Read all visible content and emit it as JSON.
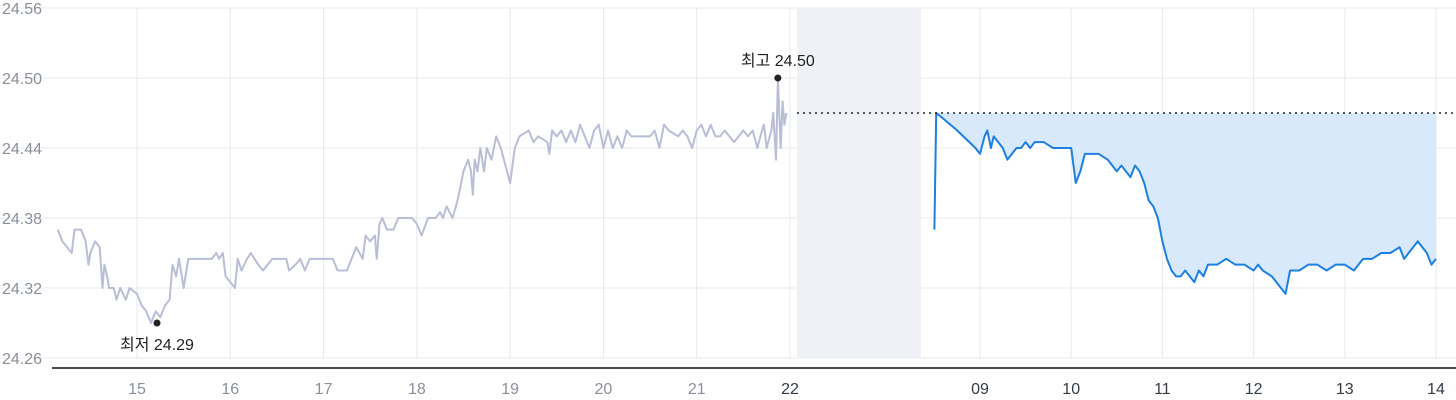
{
  "chart_data": {
    "type": "line",
    "y_axis": {
      "ylim": [
        24.26,
        24.56
      ],
      "ticks": [
        "24.56",
        "24.50",
        "24.44",
        "24.38",
        "24.32",
        "24.26"
      ]
    },
    "x_axis": {
      "history_ticks": [
        "15",
        "16",
        "17",
        "18",
        "19",
        "20",
        "21",
        "22"
      ],
      "intraday_ticks": [
        "09",
        "10",
        "11",
        "12",
        "13",
        "14"
      ]
    },
    "annotations": {
      "high_label": "최고 24.50",
      "high_value": 24.5,
      "low_label": "최저 24.29",
      "low_value": 24.29
    },
    "reference_line": 24.47,
    "colors": {
      "history_line": "#b9bdd6",
      "intraday_line": "#1e7fe0",
      "intraday_fill": "#d8e9fb",
      "gap_band": "#eff1f6",
      "grid": "#e6e8ec",
      "axis": "#111111"
    },
    "series": [
      {
        "segment": "history",
        "points": [
          [
            14.15,
            24.37
          ],
          [
            14.2,
            24.36
          ],
          [
            14.25,
            24.355
          ],
          [
            14.3,
            24.35
          ],
          [
            14.33,
            24.37
          ],
          [
            14.4,
            24.37
          ],
          [
            14.45,
            24.36
          ],
          [
            14.48,
            24.34
          ],
          [
            14.5,
            24.35
          ],
          [
            14.55,
            24.36
          ],
          [
            14.6,
            24.355
          ],
          [
            14.63,
            24.32
          ],
          [
            14.65,
            24.34
          ],
          [
            14.68,
            24.33
          ],
          [
            14.7,
            24.32
          ],
          [
            14.75,
            24.32
          ],
          [
            14.78,
            24.31
          ],
          [
            14.82,
            24.32
          ],
          [
            14.88,
            24.31
          ],
          [
            14.92,
            24.32
          ],
          [
            15.0,
            24.315
          ],
          [
            15.05,
            24.305
          ],
          [
            15.1,
            24.3
          ],
          [
            15.15,
            24.29
          ],
          [
            15.2,
            24.3
          ],
          [
            15.25,
            24.295
          ],
          [
            15.3,
            24.305
          ],
          [
            15.35,
            24.31
          ],
          [
            15.38,
            24.34
          ],
          [
            15.42,
            24.33
          ],
          [
            15.45,
            24.345
          ],
          [
            15.5,
            24.32
          ],
          [
            15.55,
            24.345
          ],
          [
            15.6,
            24.345
          ],
          [
            15.7,
            24.345
          ],
          [
            15.8,
            24.345
          ],
          [
            15.85,
            24.35
          ],
          [
            15.88,
            24.345
          ],
          [
            15.92,
            24.35
          ],
          [
            15.95,
            24.33
          ],
          [
            16.0,
            24.325
          ],
          [
            16.05,
            24.32
          ],
          [
            16.08,
            24.345
          ],
          [
            16.12,
            24.335
          ],
          [
            16.18,
            24.345
          ],
          [
            16.22,
            24.35
          ],
          [
            16.3,
            24.34
          ],
          [
            16.35,
            24.335
          ],
          [
            16.45,
            24.345
          ],
          [
            16.6,
            24.345
          ],
          [
            16.63,
            24.335
          ],
          [
            16.7,
            24.34
          ],
          [
            16.75,
            24.345
          ],
          [
            16.8,
            24.335
          ],
          [
            16.85,
            24.345
          ],
          [
            17.0,
            24.345
          ],
          [
            17.1,
            24.345
          ],
          [
            17.15,
            24.335
          ],
          [
            17.25,
            24.335
          ],
          [
            17.35,
            24.355
          ],
          [
            17.42,
            24.345
          ],
          [
            17.45,
            24.365
          ],
          [
            17.5,
            24.36
          ],
          [
            17.55,
            24.365
          ],
          [
            17.57,
            24.345
          ],
          [
            17.6,
            24.375
          ],
          [
            17.63,
            24.38
          ],
          [
            17.68,
            24.37
          ],
          [
            17.75,
            24.37
          ],
          [
            17.8,
            24.38
          ],
          [
            17.9,
            24.38
          ],
          [
            17.95,
            24.38
          ],
          [
            18.0,
            24.375
          ],
          [
            18.05,
            24.365
          ],
          [
            18.12,
            24.38
          ],
          [
            18.2,
            24.38
          ],
          [
            18.25,
            24.385
          ],
          [
            18.28,
            24.38
          ],
          [
            18.32,
            24.39
          ],
          [
            18.38,
            24.38
          ],
          [
            18.42,
            24.39
          ],
          [
            18.45,
            24.4
          ],
          [
            18.5,
            24.42
          ],
          [
            18.55,
            24.43
          ],
          [
            18.58,
            24.42
          ],
          [
            18.6,
            24.4
          ],
          [
            18.62,
            24.43
          ],
          [
            18.65,
            24.42
          ],
          [
            18.68,
            24.44
          ],
          [
            18.72,
            24.42
          ],
          [
            18.75,
            24.44
          ],
          [
            18.8,
            24.43
          ],
          [
            18.85,
            24.45
          ],
          [
            18.9,
            24.44
          ],
          [
            19.0,
            24.41
          ],
          [
            19.05,
            24.44
          ],
          [
            19.1,
            24.45
          ],
          [
            19.2,
            24.455
          ],
          [
            19.25,
            24.445
          ],
          [
            19.3,
            24.45
          ],
          [
            19.4,
            24.445
          ],
          [
            19.42,
            24.435
          ],
          [
            19.45,
            24.455
          ],
          [
            19.5,
            24.45
          ],
          [
            19.55,
            24.455
          ],
          [
            19.6,
            24.445
          ],
          [
            19.65,
            24.455
          ],
          [
            19.7,
            24.445
          ],
          [
            19.75,
            24.46
          ],
          [
            19.8,
            24.45
          ],
          [
            19.85,
            24.44
          ],
          [
            19.9,
            24.455
          ],
          [
            19.95,
            24.46
          ],
          [
            20.0,
            24.44
          ],
          [
            20.05,
            24.455
          ],
          [
            20.1,
            24.44
          ],
          [
            20.15,
            24.45
          ],
          [
            20.2,
            24.44
          ],
          [
            20.25,
            24.455
          ],
          [
            20.3,
            24.45
          ],
          [
            20.4,
            24.45
          ],
          [
            20.5,
            24.45
          ],
          [
            20.55,
            24.455
          ],
          [
            20.6,
            24.44
          ],
          [
            20.65,
            24.46
          ],
          [
            20.7,
            24.455
          ],
          [
            20.8,
            24.45
          ],
          [
            20.85,
            24.455
          ],
          [
            20.9,
            24.45
          ],
          [
            20.95,
            24.44
          ],
          [
            21.0,
            24.455
          ],
          [
            21.05,
            24.46
          ],
          [
            21.1,
            24.45
          ],
          [
            21.15,
            24.46
          ],
          [
            21.2,
            24.45
          ],
          [
            21.25,
            24.45
          ],
          [
            21.3,
            24.455
          ],
          [
            21.4,
            24.445
          ],
          [
            21.5,
            24.455
          ],
          [
            21.55,
            24.45
          ],
          [
            21.6,
            24.455
          ],
          [
            21.65,
            24.44
          ],
          [
            21.7,
            24.455
          ],
          [
            21.72,
            24.46
          ],
          [
            21.75,
            24.44
          ],
          [
            21.8,
            24.455
          ],
          [
            21.82,
            24.47
          ],
          [
            21.85,
            24.43
          ],
          [
            21.87,
            24.5
          ],
          [
            21.9,
            24.44
          ],
          [
            21.92,
            24.48
          ],
          [
            21.94,
            24.46
          ],
          [
            21.96,
            24.47
          ]
        ]
      },
      {
        "segment": "intraday",
        "points": [
          [
            8.5,
            24.37
          ],
          [
            8.52,
            24.47
          ],
          [
            8.6,
            24.465
          ],
          [
            8.75,
            24.455
          ],
          [
            8.95,
            24.44
          ],
          [
            9.0,
            24.435
          ],
          [
            9.05,
            24.45
          ],
          [
            9.08,
            24.455
          ],
          [
            9.12,
            24.44
          ],
          [
            9.15,
            24.45
          ],
          [
            9.2,
            24.445
          ],
          [
            9.25,
            24.44
          ],
          [
            9.3,
            24.43
          ],
          [
            9.35,
            24.435
          ],
          [
            9.4,
            24.44
          ],
          [
            9.45,
            24.44
          ],
          [
            9.5,
            24.445
          ],
          [
            9.55,
            24.44
          ],
          [
            9.6,
            24.445
          ],
          [
            9.7,
            24.445
          ],
          [
            9.8,
            24.44
          ],
          [
            9.9,
            24.44
          ],
          [
            10.0,
            24.44
          ],
          [
            10.05,
            24.41
          ],
          [
            10.1,
            24.42
          ],
          [
            10.15,
            24.435
          ],
          [
            10.2,
            24.435
          ],
          [
            10.3,
            24.435
          ],
          [
            10.4,
            24.43
          ],
          [
            10.45,
            24.425
          ],
          [
            10.5,
            24.42
          ],
          [
            10.55,
            24.425
          ],
          [
            10.6,
            24.42
          ],
          [
            10.65,
            24.415
          ],
          [
            10.7,
            24.425
          ],
          [
            10.75,
            24.42
          ],
          [
            10.8,
            24.41
          ],
          [
            10.85,
            24.395
          ],
          [
            10.9,
            24.39
          ],
          [
            10.95,
            24.38
          ],
          [
            11.0,
            24.36
          ],
          [
            11.05,
            24.345
          ],
          [
            11.1,
            24.335
          ],
          [
            11.15,
            24.33
          ],
          [
            11.2,
            24.33
          ],
          [
            11.25,
            24.335
          ],
          [
            11.3,
            24.33
          ],
          [
            11.35,
            24.325
          ],
          [
            11.4,
            24.335
          ],
          [
            11.45,
            24.33
          ],
          [
            11.5,
            24.34
          ],
          [
            11.6,
            24.34
          ],
          [
            11.7,
            24.345
          ],
          [
            11.8,
            24.34
          ],
          [
            11.9,
            24.34
          ],
          [
            12.0,
            24.335
          ],
          [
            12.05,
            24.34
          ],
          [
            12.1,
            24.335
          ],
          [
            12.2,
            24.33
          ],
          [
            12.3,
            24.32
          ],
          [
            12.35,
            24.315
          ],
          [
            12.4,
            24.335
          ],
          [
            12.5,
            24.335
          ],
          [
            12.6,
            24.34
          ],
          [
            12.7,
            24.34
          ],
          [
            12.8,
            24.335
          ],
          [
            12.9,
            24.34
          ],
          [
            13.0,
            24.34
          ],
          [
            13.1,
            24.335
          ],
          [
            13.2,
            24.345
          ],
          [
            13.3,
            24.345
          ],
          [
            13.4,
            24.35
          ],
          [
            13.5,
            24.35
          ],
          [
            13.6,
            24.355
          ],
          [
            13.65,
            24.345
          ],
          [
            13.7,
            24.35
          ],
          [
            13.8,
            24.36
          ],
          [
            13.9,
            24.35
          ],
          [
            13.95,
            24.34
          ],
          [
            14.0,
            24.345
          ]
        ]
      }
    ]
  }
}
